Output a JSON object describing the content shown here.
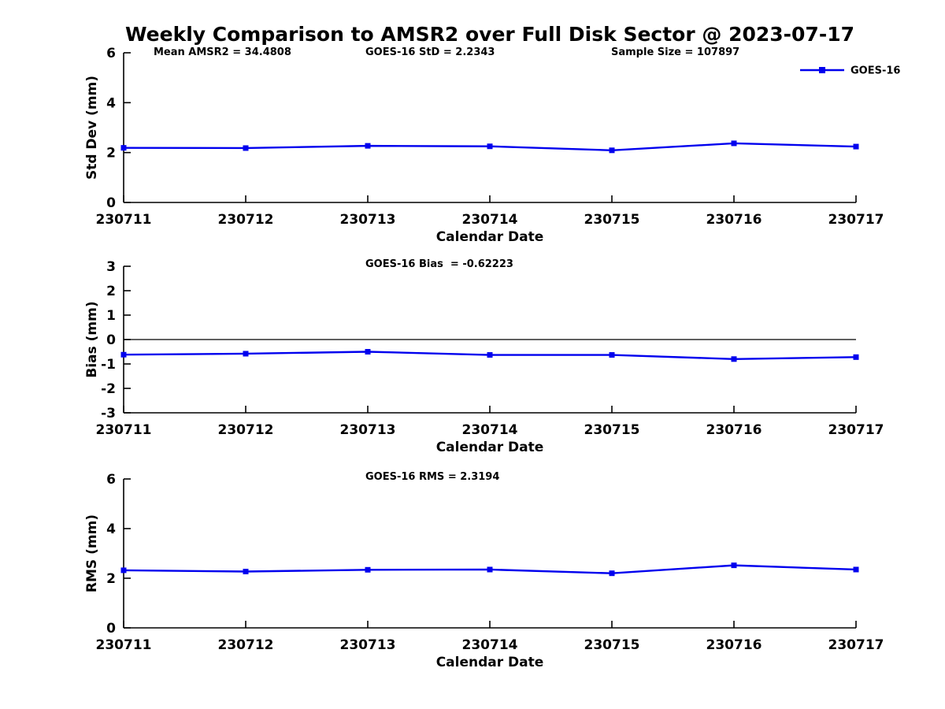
{
  "header": {
    "title": "Weekly Comparison to AMSR2 over Full Disk Sector @ 2023-07-17",
    "stats": {
      "mean_amsr2": "Mean AMSR2 = 34.4808",
      "goes16_std": "GOES-16 StD = 2.2343",
      "sample_size": "Sample Size = 107897"
    }
  },
  "legend": {
    "label": "GOES-16",
    "color": "#0000EE",
    "position": "top-right",
    "marker": "filled-square"
  },
  "colors": {
    "series_blue": "#0000EE",
    "axis_black": "#000000",
    "background": "#FFFFFF"
  },
  "chart_data": [
    {
      "type": "line",
      "title": "",
      "categories": [
        "230711",
        "230712",
        "230713",
        "230714",
        "230715",
        "230716",
        "230717"
      ],
      "series": [
        {
          "name": "GOES-16",
          "color": "#0000EE",
          "marker": "square",
          "values": [
            2.19,
            2.18,
            2.27,
            2.25,
            2.09,
            2.37,
            2.24
          ]
        }
      ],
      "xlabel": "Calendar Date",
      "ylabel": "Std Dev (mm)",
      "ylim": [
        0,
        6
      ],
      "yticks": [
        0,
        2,
        4,
        6
      ],
      "zero_line": false,
      "grid": false,
      "legend_position": "top-right"
    },
    {
      "type": "line",
      "title": "GOES-16 Bias  = -0.62223",
      "categories": [
        "230711",
        "230712",
        "230713",
        "230714",
        "230715",
        "230716",
        "230717"
      ],
      "series": [
        {
          "name": "GOES-16",
          "color": "#0000EE",
          "marker": "square",
          "values": [
            -0.62,
            -0.58,
            -0.5,
            -0.63,
            -0.63,
            -0.8,
            -0.72
          ]
        }
      ],
      "xlabel": "Calendar Date",
      "ylabel": "Bias (mm)",
      "ylim": [
        -3,
        3
      ],
      "yticks": [
        -3,
        -2,
        -1,
        0,
        1,
        2,
        3
      ],
      "zero_line": true,
      "grid": false,
      "legend_position": "none"
    },
    {
      "type": "line",
      "title": "GOES-16 RMS = 2.3194",
      "categories": [
        "230711",
        "230712",
        "230713",
        "230714",
        "230715",
        "230716",
        "230717"
      ],
      "series": [
        {
          "name": "GOES-16",
          "color": "#0000EE",
          "marker": "square",
          "values": [
            2.32,
            2.27,
            2.34,
            2.35,
            2.2,
            2.52,
            2.35
          ]
        }
      ],
      "xlabel": "Calendar Date",
      "ylabel": "RMS (mm)",
      "ylim": [
        0,
        6
      ],
      "yticks": [
        0,
        2,
        4,
        6
      ],
      "zero_line": false,
      "grid": false,
      "legend_position": "none"
    }
  ]
}
